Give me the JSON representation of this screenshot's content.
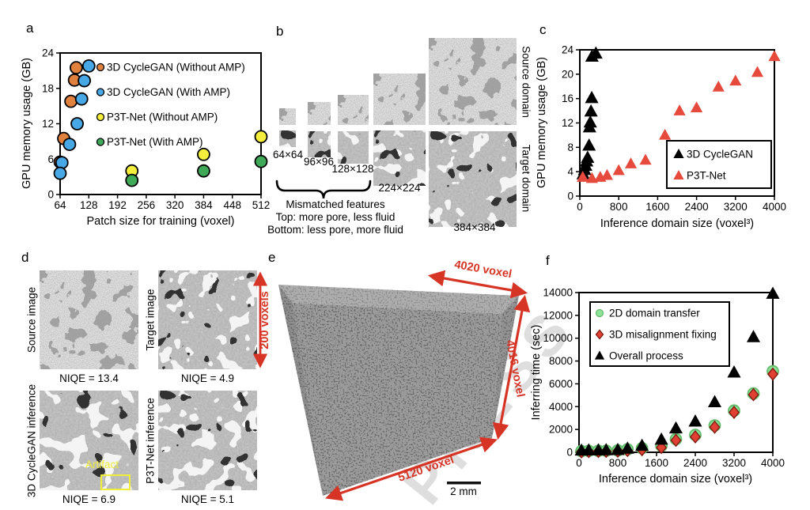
{
  "watermark": {
    "text": "PRESS"
  },
  "colors": {
    "accent_red": "#d63425",
    "orange": "#e0813d",
    "blue": "#47a8e5",
    "yellow": "#f5ee3d",
    "green": "#3fa957",
    "light_green": "#8de39a",
    "red_marker": "#e64a3c",
    "black": "#000000"
  },
  "chart_data": [
    {
      "type": "scatter",
      "xlabel": "Patch size for training (voxel)",
      "ylabel": "GPU memory usage (GB)",
      "xlim": [
        64,
        512
      ],
      "ylim": [
        0,
        24
      ],
      "xticks": [
        64,
        128,
        192,
        256,
        320,
        384,
        448,
        512
      ],
      "yticks": [
        0,
        6,
        12,
        18,
        24
      ],
      "grid": false,
      "legend_position": "inside-top-left",
      "series": [
        {
          "name": "3D CycleGAN (Without AMP)",
          "marker": "circle",
          "color": "#e0813d",
          "edge": "#000000",
          "points": [
            [
              100,
              21.5
            ],
            [
              96,
              19.4
            ],
            [
              88,
              15.8
            ],
            [
              72,
              9.5
            ],
            [
              64,
              5.5
            ]
          ]
        },
        {
          "name": "3D CycleGAN (With AMP)",
          "marker": "circle",
          "color": "#47a8e5",
          "edge": "#000000",
          "points": [
            [
              128,
              21.8
            ],
            [
              118,
              19.3
            ],
            [
              112,
              16.2
            ],
            [
              102,
              12.0
            ],
            [
              85,
              8.5
            ],
            [
              68,
              5.4
            ],
            [
              64,
              3.6
            ]
          ]
        },
        {
          "name": "P3T-Net (Without AMP)",
          "marker": "circle",
          "color": "#f5ee3d",
          "edge": "#000000",
          "points": [
            [
              224,
              4.0
            ],
            [
              384,
              6.8
            ],
            [
              512,
              9.8
            ]
          ]
        },
        {
          "name": "P3T-Net (With AMP)",
          "marker": "circle",
          "color": "#3fa957",
          "edge": "#000000",
          "points": [
            [
              224,
              2.4
            ],
            [
              384,
              4.0
            ],
            [
              512,
              5.6
            ]
          ]
        }
      ]
    },
    {
      "type": "scatter",
      "xlabel": "Inference domain size (voxel³)",
      "ylabel": "GPU memory usage (GB)",
      "xlim": [
        0,
        4000
      ],
      "ylim": [
        0,
        24
      ],
      "xticks": [
        0,
        800,
        1600,
        2400,
        3200,
        4000
      ],
      "yticks": [
        0,
        4,
        8,
        12,
        16,
        20,
        24
      ],
      "grid": false,
      "legend_position": "inside-right-boxed",
      "series": [
        {
          "name": "3D CycleGAN",
          "marker": "triangle",
          "color": "#000000",
          "edge": null,
          "points": [
            [
              70,
              3.6
            ],
            [
              100,
              4.3
            ],
            [
              120,
              5.0
            ],
            [
              140,
              5.7
            ],
            [
              160,
              6.3
            ],
            [
              190,
              8.3
            ],
            [
              200,
              11.3
            ],
            [
              215,
              12.1
            ],
            [
              230,
              13.9
            ],
            [
              245,
              16.1
            ],
            [
              250,
              22.9
            ],
            [
              330,
              23.4
            ]
          ]
        },
        {
          "name": "P3T-Net",
          "marker": "triangle",
          "color": "#e64a3c",
          "edge": null,
          "points": [
            [
              60,
              3.1
            ],
            [
              250,
              2.9
            ],
            [
              420,
              3.1
            ],
            [
              560,
              3.4
            ],
            [
              800,
              4.2
            ],
            [
              1050,
              5.3
            ],
            [
              1350,
              5.9
            ],
            [
              1750,
              10.0
            ],
            [
              2050,
              14.0
            ],
            [
              2400,
              14.5
            ],
            [
              2850,
              17.9
            ],
            [
              3200,
              18.9
            ],
            [
              3650,
              20.3
            ],
            [
              4000,
              22.9
            ]
          ]
        }
      ]
    },
    {
      "type": "scatter",
      "xlabel": "Inference domain size (voxel³)",
      "ylabel": "Inferring time (sec)",
      "xlim": [
        0,
        4000
      ],
      "ylim": [
        0,
        14000
      ],
      "xticks": [
        0,
        800,
        1600,
        2400,
        3200,
        4000
      ],
      "yticks": [
        0,
        2000,
        4000,
        6000,
        8000,
        10000,
        12000,
        14000
      ],
      "grid": false,
      "legend_position": "inside-top-left-boxed",
      "series": [
        {
          "name": "2D domain transfer",
          "marker": "circle",
          "color": "#8de39a",
          "edge": "#63bd6c",
          "points": [
            [
              50,
              100
            ],
            [
              200,
              120
            ],
            [
              400,
              130
            ],
            [
              560,
              140
            ],
            [
              800,
              160
            ],
            [
              1000,
              260
            ],
            [
              1300,
              360
            ],
            [
              1700,
              560
            ],
            [
              2000,
              1150
            ],
            [
              2400,
              1520
            ],
            [
              2800,
              2350
            ],
            [
              3200,
              3650
            ],
            [
              3600,
              5150
            ],
            [
              4000,
              7100
            ]
          ]
        },
        {
          "name": "3D misalignment fixing",
          "marker": "diamond",
          "color": "#e14034",
          "edge": "#7c170d",
          "points": [
            [
              50,
              40
            ],
            [
              200,
              60
            ],
            [
              400,
              70
            ],
            [
              560,
              80
            ],
            [
              800,
              100
            ],
            [
              1000,
              160
            ],
            [
              1300,
              230
            ],
            [
              1700,
              420
            ],
            [
              2000,
              1050
            ],
            [
              2400,
              1350
            ],
            [
              2800,
              2200
            ],
            [
              3200,
              3500
            ],
            [
              3600,
              5050
            ],
            [
              4000,
              6850
            ]
          ]
        },
        {
          "name": "Overall process",
          "marker": "triangle",
          "color": "#000000",
          "edge": null,
          "points": [
            [
              50,
              160
            ],
            [
              200,
              170
            ],
            [
              400,
              180
            ],
            [
              560,
              190
            ],
            [
              800,
              210
            ],
            [
              1000,
              330
            ],
            [
              1300,
              580
            ],
            [
              1700,
              1120
            ],
            [
              2000,
              2100
            ],
            [
              2400,
              2700
            ],
            [
              2800,
              4400
            ],
            [
              3200,
              7000
            ],
            [
              3600,
              10100
            ],
            [
              4000,
              13900
            ]
          ]
        }
      ]
    }
  ],
  "panels": {
    "a": {
      "letter": "a"
    },
    "b": {
      "letter": "b",
      "sizes": [
        "64×64",
        "96×96",
        "128×128",
        "224×224",
        "384×384"
      ],
      "row_labels": [
        "Source domain",
        "Target domain"
      ],
      "notes": [
        "Mismatched features",
        "Top: more pore, less fluid",
        "Bottom: less pore, more fluid"
      ]
    },
    "c": {
      "letter": "c"
    },
    "d": {
      "letter": "d",
      "cells": [
        {
          "side_label": "Source image",
          "niqe": "NIQE = 13.4"
        },
        {
          "side_label": "Target image",
          "niqe": "NIQE = 4.9"
        },
        {
          "side_label": "3D CycleGAN inference",
          "niqe": "NIQE = 6.9",
          "artifact_label": "Artifact"
        },
        {
          "side_label": "P3T-Net inference",
          "niqe": "NIQE = 5.1"
        }
      ]
    },
    "e": {
      "letter": "e",
      "dims": {
        "height": "200 voxels",
        "top": "4020 voxel",
        "right": "4016 voxel",
        "bottom": "5120 voxel"
      },
      "scale_bar": "2 mm"
    },
    "f": {
      "letter": "f"
    }
  }
}
